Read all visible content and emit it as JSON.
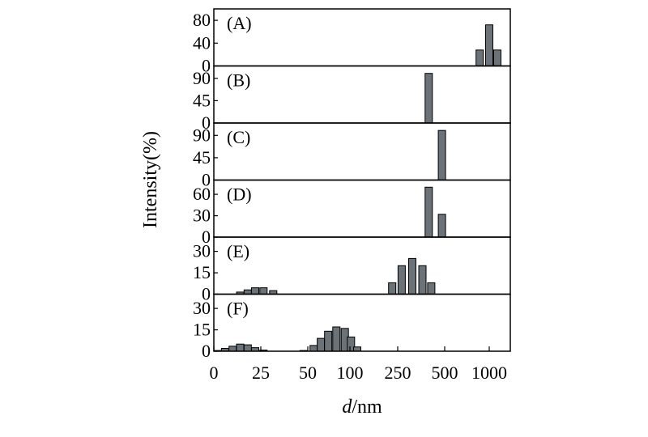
{
  "chart_data": {
    "type": "bar",
    "ylabel": "Intensity(%)",
    "xlabel_italic": "d",
    "xlabel_rest": "/nm",
    "x_ticks": [
      "0",
      "25",
      "50",
      "100",
      "250",
      "500",
      "1000"
    ],
    "bar_color": "#6b7278",
    "panels": [
      {
        "label": "(A)",
        "ylim": [
          0,
          100
        ],
        "yticks": [
          0,
          40,
          80
        ],
        "bars": [
          {
            "x": 862,
            "y": 28
          },
          {
            "x": 1000,
            "y": 72
          },
          {
            "x": 1135,
            "y": 28
          }
        ]
      },
      {
        "label": "(B)",
        "ylim": [
          0,
          115
        ],
        "yticks": [
          0,
          45,
          90
        ],
        "bars": [
          {
            "x": 395,
            "y": 100
          }
        ]
      },
      {
        "label": "(C)",
        "ylim": [
          0,
          115
        ],
        "yticks": [
          0,
          45,
          90
        ],
        "bars": [
          {
            "x": 480,
            "y": 100
          }
        ]
      },
      {
        "label": "(D)",
        "ylim": [
          0,
          80
        ],
        "yticks": [
          0,
          30,
          60
        ],
        "bars": [
          {
            "x": 395,
            "y": 70
          },
          {
            "x": 480,
            "y": 32
          }
        ]
      },
      {
        "label": "(E)",
        "ylim": [
          0,
          40
        ],
        "yticks": [
          0,
          15,
          30
        ],
        "bars": [
          {
            "x": 14,
            "y": 1.5
          },
          {
            "x": 18,
            "y": 3
          },
          {
            "x": 22,
            "y": 4.5
          },
          {
            "x": 26,
            "y": 4.5
          },
          {
            "x": 30,
            "y": 2.5
          },
          {
            "x": 225,
            "y": 8
          },
          {
            "x": 265,
            "y": 20
          },
          {
            "x": 310,
            "y": 25
          },
          {
            "x": 360,
            "y": 20
          },
          {
            "x": 410,
            "y": 8
          }
        ]
      },
      {
        "label": "(F)",
        "ylim": [
          0,
          40
        ],
        "yticks": [
          0,
          15,
          30
        ],
        "bars": [
          {
            "x": 2,
            "y": 0.5
          },
          {
            "x": 6,
            "y": 2
          },
          {
            "x": 10,
            "y": 3.5
          },
          {
            "x": 14,
            "y": 5
          },
          {
            "x": 18,
            "y": 4.5
          },
          {
            "x": 22,
            "y": 2.5
          },
          {
            "x": 26,
            "y": 0.8
          },
          {
            "x": 47,
            "y": 0.5
          },
          {
            "x": 55,
            "y": 4
          },
          {
            "x": 62,
            "y": 9
          },
          {
            "x": 70,
            "y": 14
          },
          {
            "x": 80,
            "y": 17
          },
          {
            "x": 92,
            "y": 16
          },
          {
            "x": 102,
            "y": 10
          },
          {
            "x": 115,
            "y": 3
          }
        ]
      }
    ]
  }
}
